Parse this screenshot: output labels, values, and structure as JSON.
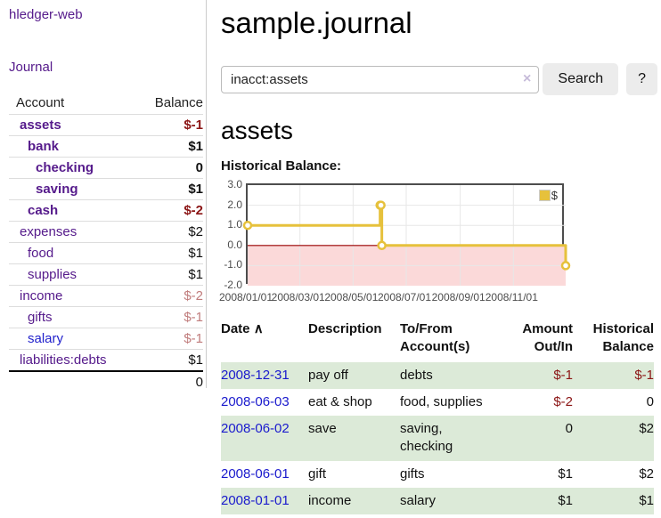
{
  "app": {
    "brand": "hledger-web",
    "nav_journal": "Journal"
  },
  "sidebar": {
    "header": {
      "account": "Account",
      "balance": "Balance"
    },
    "accounts": [
      {
        "name": "assets",
        "indent": 0,
        "bold": true,
        "name_color": "purple",
        "balance": "$-1",
        "balance_color": "neg"
      },
      {
        "name": "bank",
        "indent": 1,
        "bold": true,
        "name_color": "purple",
        "balance": "$1",
        "balance_color": "pos"
      },
      {
        "name": "checking",
        "indent": 2,
        "bold": true,
        "name_color": "purple",
        "balance": "0",
        "balance_color": "pos"
      },
      {
        "name": "saving",
        "indent": 2,
        "bold": true,
        "name_color": "purple",
        "balance": "$1",
        "balance_color": "pos"
      },
      {
        "name": "cash",
        "indent": 1,
        "bold": true,
        "name_color": "purple",
        "balance": "$-2",
        "balance_color": "neg"
      },
      {
        "name": "expenses",
        "indent": 0,
        "bold": false,
        "name_color": "purple",
        "balance": "$2",
        "balance_color": "pos"
      },
      {
        "name": "food",
        "indent": 1,
        "bold": false,
        "name_color": "purple",
        "balance": "$1",
        "balance_color": "pos"
      },
      {
        "name": "supplies",
        "indent": 1,
        "bold": false,
        "name_color": "purple",
        "balance": "$1",
        "balance_color": "pos"
      },
      {
        "name": "income",
        "indent": 0,
        "bold": false,
        "name_color": "purple",
        "balance": "$-2",
        "balance_color": "soft"
      },
      {
        "name": "gifts",
        "indent": 1,
        "bold": false,
        "name_color": "purple",
        "balance": "$-1",
        "balance_color": "soft"
      },
      {
        "name": "salary",
        "indent": 1,
        "bold": false,
        "name_color": "blue",
        "balance": "$-1",
        "balance_color": "soft"
      },
      {
        "name": "liabilities:debts",
        "indent": 0,
        "bold": false,
        "name_color": "purple",
        "balance": "$1",
        "balance_color": "pos"
      }
    ],
    "total": "0"
  },
  "main": {
    "title": "sample.journal",
    "search": {
      "value": "inacct:assets",
      "clear_icon": "×",
      "button": "Search",
      "help_button": "?"
    },
    "heading": "assets",
    "chart_label": "Historical Balance:"
  },
  "chart_data": {
    "type": "line",
    "step": true,
    "title": "Historical Balance",
    "legend_position": "top-right",
    "y_ticks": [
      3.0,
      2.0,
      1.0,
      0.0,
      -1.0,
      -2.0
    ],
    "ylim": [
      -2,
      3
    ],
    "x_ticks": [
      "2008/01/01",
      "2008/03/01",
      "2008/05/01",
      "2008/07/01",
      "2008/09/01",
      "2008/11/01"
    ],
    "x_tick_days": [
      0,
      60,
      121,
      182,
      244,
      305
    ],
    "xlim_days": [
      0,
      365
    ],
    "grid": true,
    "series": [
      {
        "name": "$",
        "color": "#e6c13c",
        "points": [
          {
            "date": "2008-01-01",
            "x_days": 0,
            "y": 1
          },
          {
            "date": "2008-06-01",
            "x_days": 152,
            "y": 2
          },
          {
            "date": "2008-06-02",
            "x_days": 153,
            "y": 2
          },
          {
            "date": "2008-06-03",
            "x_days": 154,
            "y": 0
          },
          {
            "date": "2008-12-31",
            "x_days": 365,
            "y": -1
          }
        ]
      }
    ],
    "negative_region_fill": "#fbd9d9",
    "zero_line_color": "#990000",
    "gridline_color": "#e7e7e7"
  },
  "table": {
    "headers": {
      "date": "Date",
      "description": "Description",
      "accounts": "To/From Account(s)",
      "amount": "Amount Out/In",
      "balance": "Historical Balance"
    },
    "sort_icon": "∧",
    "rows": [
      {
        "date": "2008-12-31",
        "description": "pay off",
        "accounts": "debts",
        "amount": "$-1",
        "amount_color": "neg",
        "balance": "$-1",
        "balance_color": "neg",
        "shaded": true
      },
      {
        "date": "2008-06-03",
        "description": "eat & shop",
        "accounts": "food, supplies",
        "amount": "$-2",
        "amount_color": "neg",
        "balance": "0",
        "balance_color": "pos",
        "shaded": false
      },
      {
        "date": "2008-06-02",
        "description": "save",
        "accounts": "saving, checking",
        "amount": "0",
        "amount_color": "pos",
        "balance": "$2",
        "balance_color": "pos",
        "shaded": true
      },
      {
        "date": "2008-06-01",
        "description": "gift",
        "accounts": "gifts",
        "amount": "$1",
        "amount_color": "pos",
        "balance": "$2",
        "balance_color": "pos",
        "shaded": false
      },
      {
        "date": "2008-01-01",
        "description": "income",
        "accounts": "salary",
        "amount": "$1",
        "amount_color": "pos",
        "balance": "$1",
        "balance_color": "pos",
        "shaded": true
      }
    ]
  },
  "colors": {
    "link_purple": "#551a8b",
    "link_blue": "#1a1acd",
    "negative_strong": "#8b1515",
    "negative_soft": "#c07c7c",
    "row_shade_green": "#dcead8",
    "chart_line_gold": "#e6c13c",
    "chart_negative_fill": "#fbd9d9",
    "chart_zero_line": "#990000"
  }
}
